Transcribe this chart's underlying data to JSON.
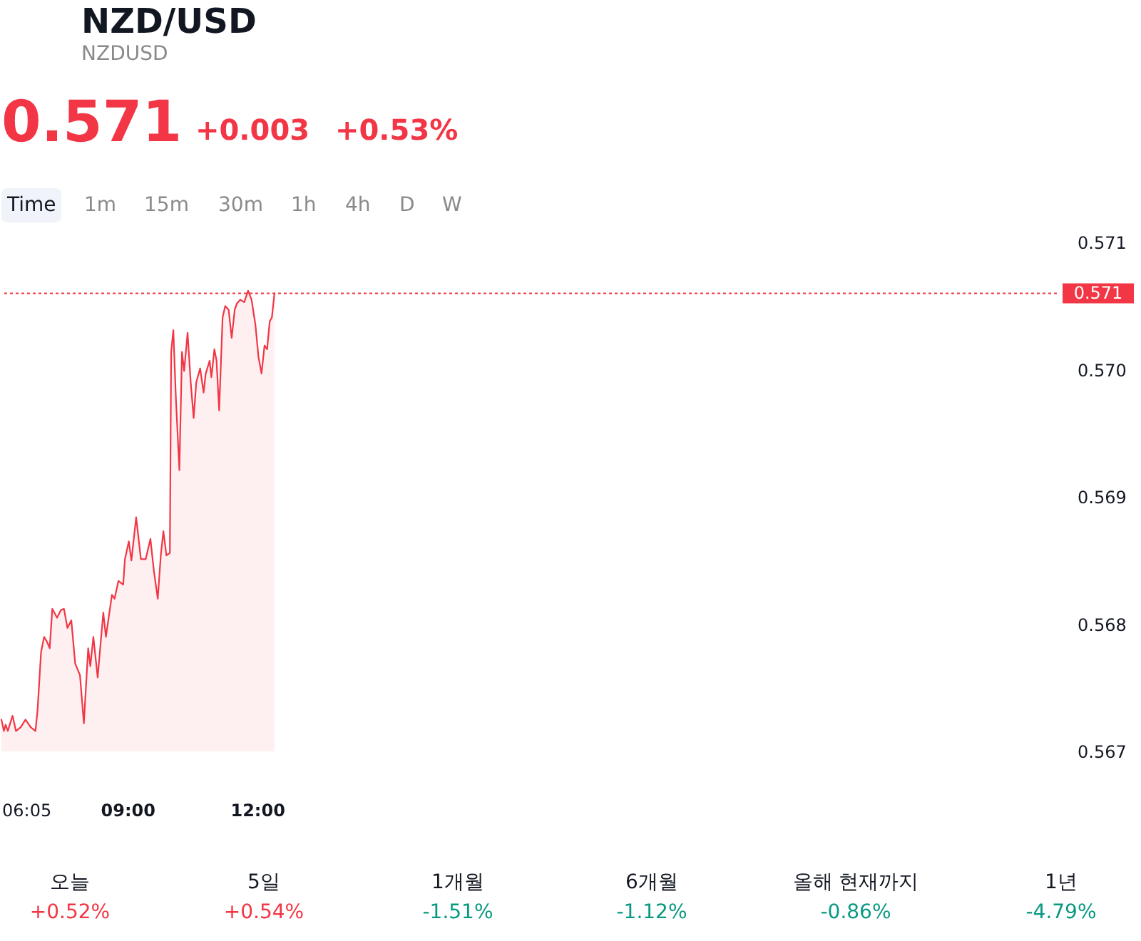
{
  "chart_data": {
    "type": "area",
    "title": "NZD/USD",
    "subtitle": "NZDUSD",
    "x": [
      6.083,
      6.14,
      6.18,
      6.23,
      6.34,
      6.42,
      6.53,
      6.64,
      6.76,
      6.87,
      6.92,
      7.0,
      7.07,
      7.14,
      7.2,
      7.26,
      7.37,
      7.46,
      7.53,
      7.61,
      7.7,
      7.79,
      7.9,
      7.99,
      8.09,
      8.14,
      8.21,
      8.31,
      8.39,
      8.44,
      8.5,
      8.64,
      8.7,
      8.79,
      8.9,
      8.94,
      9.03,
      9.09,
      9.2,
      9.31,
      9.42,
      9.53,
      9.61,
      9.7,
      9.77,
      9.83,
      9.9,
      9.98,
      10.01,
      10.06,
      10.12,
      10.2,
      10.26,
      10.31,
      10.39,
      10.46,
      10.53,
      10.59,
      10.68,
      10.76,
      10.81,
      10.9,
      10.94,
      11.01,
      11.06,
      11.12,
      11.2,
      11.26,
      11.34,
      11.41,
      11.48,
      11.53,
      11.61,
      11.7,
      11.79,
      11.87,
      11.96,
      12.03,
      12.1,
      12.17,
      12.23,
      12.29,
      12.34,
      12.4
    ],
    "series": [
      {
        "color": "#f23645",
        "values": [
          0.56725,
          0.56716,
          0.56721,
          0.56716,
          0.56728,
          0.56716,
          0.56719,
          0.56725,
          0.56719,
          0.56716,
          0.56733,
          0.56778,
          0.5679,
          0.56786,
          0.56781,
          0.56812,
          0.56805,
          0.56811,
          0.56812,
          0.56797,
          0.56803,
          0.56769,
          0.5676,
          0.56722,
          0.56781,
          0.56767,
          0.5679,
          0.56758,
          0.5679,
          0.56809,
          0.5679,
          0.56823,
          0.5682,
          0.56834,
          0.56831,
          0.56851,
          0.56865,
          0.5685,
          0.56884,
          0.56851,
          0.56851,
          0.56867,
          0.56842,
          0.5682,
          0.56854,
          0.56873,
          0.56854,
          0.56856,
          0.57014,
          0.57031,
          0.56977,
          0.56921,
          0.57014,
          0.56999,
          0.57029,
          0.56991,
          0.56962,
          0.5699,
          0.57001,
          0.56982,
          0.56997,
          0.57007,
          0.56994,
          0.57016,
          0.57007,
          0.56968,
          0.57041,
          0.5705,
          0.57047,
          0.57025,
          0.57047,
          0.57052,
          0.57055,
          0.57053,
          0.57062,
          0.57055,
          0.57035,
          0.5701,
          0.56997,
          0.57019,
          0.57016,
          0.57038,
          0.57041,
          0.5706
        ]
      }
    ],
    "xlim": [
      6.083,
      30.5
    ],
    "xticks": [
      {
        "value": 6.083,
        "label": "06:05"
      },
      {
        "value": 9,
        "label": "09:00"
      },
      {
        "value": 12,
        "label": "12:00"
      }
    ],
    "ylim": [
      0.567,
      0.571
    ],
    "yticks": [
      0.567,
      0.568,
      0.569,
      {
        "value": 0.57,
        "label": "0.570"
      },
      0.571
    ],
    "ref_lines": [
      {
        "axis": "y",
        "value": 0.5706,
        "label": "0.571",
        "color": "#f23645",
        "line_style": "dotted"
      }
    ],
    "grid": false,
    "annotations": [
      "0.571",
      "+0.003",
      "+0.53%",
      "Time",
      "1m",
      "15m",
      "30m",
      "1h",
      "4h",
      "D",
      "W",
      "오늘",
      "+0.52%",
      "5일",
      "+0.54%",
      "1개월",
      "-1.51%",
      "6개월",
      "-1.12%",
      "올해 현재까지",
      "-0.86%",
      "1년",
      "-4.79%"
    ]
  }
}
